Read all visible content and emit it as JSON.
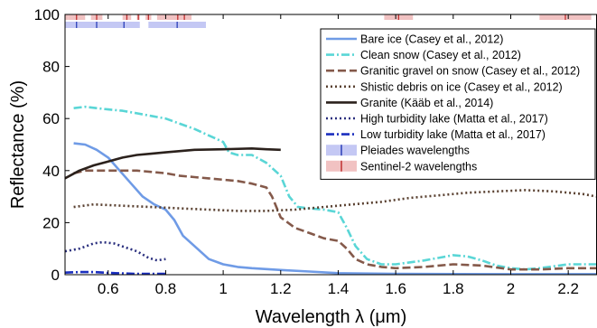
{
  "chart_data": {
    "type": "line",
    "xlabel": "Wavelength λ (μm)",
    "ylabel": "Reflectance (%)",
    "xlim": [
      0.45,
      2.3
    ],
    "ylim": [
      0,
      100
    ],
    "xticks": [
      "0.6",
      "0.8",
      "1",
      "1.2",
      "1.4",
      "1.6",
      "1.8",
      "2",
      "2.2"
    ],
    "xtick_values": [
      0.6,
      0.8,
      1.0,
      1.2,
      1.4,
      1.6,
      1.8,
      2.0,
      2.2
    ],
    "yticks": [
      "0",
      "20",
      "40",
      "60",
      "80",
      "100"
    ],
    "ytick_values": [
      0,
      20,
      40,
      60,
      80,
      100
    ],
    "grid": false,
    "legend_position": "right",
    "series": [
      {
        "name": "Bare ice (Casey et al., 2012)",
        "color": "#6f9be6",
        "dash": "solid",
        "points": [
          [
            0.48,
            50.5
          ],
          [
            0.52,
            50
          ],
          [
            0.56,
            48
          ],
          [
            0.6,
            45
          ],
          [
            0.64,
            40
          ],
          [
            0.68,
            35
          ],
          [
            0.72,
            30
          ],
          [
            0.76,
            27
          ],
          [
            0.8,
            25
          ],
          [
            0.83,
            21
          ],
          [
            0.86,
            15
          ],
          [
            0.9,
            11
          ],
          [
            0.95,
            6
          ],
          [
            1.0,
            4
          ],
          [
            1.05,
            3
          ],
          [
            1.1,
            2.5
          ],
          [
            1.2,
            1.8
          ],
          [
            1.3,
            1.2
          ],
          [
            1.4,
            0.6
          ],
          [
            1.6,
            0.3
          ],
          [
            2.0,
            0.2
          ],
          [
            2.3,
            0.2
          ]
        ]
      },
      {
        "name": "Clean snow (Casey et al., 2012)",
        "color": "#5ad6d6",
        "dash": "dashdot",
        "points": [
          [
            0.48,
            64
          ],
          [
            0.52,
            64.5
          ],
          [
            0.56,
            64
          ],
          [
            0.6,
            63.5
          ],
          [
            0.65,
            63
          ],
          [
            0.7,
            62
          ],
          [
            0.75,
            61
          ],
          [
            0.8,
            60
          ],
          [
            0.85,
            58
          ],
          [
            0.9,
            56
          ],
          [
            0.95,
            53.5
          ],
          [
            1.0,
            51
          ],
          [
            1.02,
            47
          ],
          [
            1.05,
            46
          ],
          [
            1.1,
            46
          ],
          [
            1.15,
            43
          ],
          [
            1.2,
            38
          ],
          [
            1.23,
            30
          ],
          [
            1.26,
            26
          ],
          [
            1.3,
            25.5
          ],
          [
            1.35,
            25
          ],
          [
            1.4,
            24
          ],
          [
            1.43,
            18
          ],
          [
            1.46,
            11
          ],
          [
            1.5,
            6
          ],
          [
            1.55,
            4
          ],
          [
            1.6,
            4
          ],
          [
            1.7,
            5.5
          ],
          [
            1.8,
            7.5
          ],
          [
            1.85,
            7
          ],
          [
            1.9,
            5.5
          ],
          [
            1.95,
            3.5
          ],
          [
            2.0,
            2.5
          ],
          [
            2.05,
            2
          ],
          [
            2.1,
            2.5
          ],
          [
            2.2,
            4
          ],
          [
            2.3,
            4
          ]
        ]
      },
      {
        "name": "Granitic gravel on snow (Casey et al., 2012)",
        "color": "#84594a",
        "dash": "dash",
        "points": [
          [
            0.48,
            39
          ],
          [
            0.52,
            40
          ],
          [
            0.6,
            40
          ],
          [
            0.7,
            40
          ],
          [
            0.8,
            39
          ],
          [
            0.85,
            38
          ],
          [
            0.9,
            37.5
          ],
          [
            0.95,
            37
          ],
          [
            1.0,
            36.5
          ],
          [
            1.05,
            36
          ],
          [
            1.1,
            35
          ],
          [
            1.15,
            33.5
          ],
          [
            1.17,
            30
          ],
          [
            1.2,
            22
          ],
          [
            1.25,
            18
          ],
          [
            1.3,
            16
          ],
          [
            1.35,
            14
          ],
          [
            1.4,
            13
          ],
          [
            1.43,
            10
          ],
          [
            1.46,
            6
          ],
          [
            1.5,
            4
          ],
          [
            1.55,
            3
          ],
          [
            1.6,
            2.5
          ],
          [
            1.7,
            3
          ],
          [
            1.8,
            4
          ],
          [
            1.9,
            3.5
          ],
          [
            2.0,
            2
          ],
          [
            2.1,
            2
          ],
          [
            2.2,
            2.5
          ],
          [
            2.3,
            2.5
          ]
        ]
      },
      {
        "name": "Shistic debris on ice (Casey et al., 2012)",
        "color": "#5a4131",
        "dash": "dot",
        "points": [
          [
            0.48,
            26
          ],
          [
            0.55,
            27
          ],
          [
            0.65,
            26.5
          ],
          [
            0.75,
            26
          ],
          [
            0.85,
            25.5
          ],
          [
            0.95,
            25
          ],
          [
            1.05,
            24.5
          ],
          [
            1.15,
            24.5
          ],
          [
            1.25,
            25
          ],
          [
            1.35,
            26
          ],
          [
            1.45,
            27
          ],
          [
            1.55,
            28
          ],
          [
            1.65,
            29.5
          ],
          [
            1.75,
            30.5
          ],
          [
            1.85,
            31.5
          ],
          [
            1.95,
            32
          ],
          [
            2.05,
            32.5
          ],
          [
            2.15,
            32
          ],
          [
            2.25,
            31
          ],
          [
            2.3,
            30
          ]
        ]
      },
      {
        "name": "Granite (Kääb et al., 2014)",
        "color": "#2b211c",
        "dash": "solid",
        "points": [
          [
            0.45,
            37
          ],
          [
            0.5,
            40
          ],
          [
            0.55,
            42
          ],
          [
            0.6,
            43.5
          ],
          [
            0.65,
            45
          ],
          [
            0.7,
            46
          ],
          [
            0.75,
            46.5
          ],
          [
            0.8,
            47
          ],
          [
            0.85,
            47.5
          ],
          [
            0.9,
            48
          ],
          [
            1.0,
            48.2
          ],
          [
            1.1,
            48.5
          ],
          [
            1.15,
            48.2
          ],
          [
            1.2,
            48
          ]
        ]
      },
      {
        "name": "High turbidity lake (Matta et al., 2017)",
        "color": "#2a2f7e",
        "dash": "dot",
        "points": [
          [
            0.45,
            9
          ],
          [
            0.5,
            10
          ],
          [
            0.55,
            12
          ],
          [
            0.58,
            12.5
          ],
          [
            0.62,
            12
          ],
          [
            0.66,
            10.5
          ],
          [
            0.7,
            9
          ],
          [
            0.74,
            6.5
          ],
          [
            0.77,
            5.5
          ],
          [
            0.8,
            6
          ]
        ]
      },
      {
        "name": "Low turbidity lake (Matta et al., 2017)",
        "color": "#1b2fbf",
        "dash": "dashdot",
        "points": [
          [
            0.45,
            0.8
          ],
          [
            0.5,
            1
          ],
          [
            0.55,
            1
          ],
          [
            0.6,
            0.7
          ],
          [
            0.7,
            0.3
          ],
          [
            0.8,
            0.3
          ]
        ]
      }
    ],
    "patch_legend": [
      {
        "name": "Pleiades wavelengths",
        "color": "#c4c8f4",
        "line": "#2b3fb8"
      },
      {
        "name": "Sentinel-2 wavelengths",
        "color": "#f1c2c2",
        "line": "#c03030"
      }
    ],
    "band_markers": {
      "sentinel2": {
        "fill": "#f1c2c2",
        "line": "#c03030",
        "bands": [
          [
            0.43,
            0.46,
            0.443
          ],
          [
            0.46,
            0.52,
            0.49
          ],
          [
            0.54,
            0.58,
            0.56
          ],
          [
            0.65,
            0.68,
            0.665
          ],
          [
            0.7,
            0.71,
            0.705
          ],
          [
            0.73,
            0.75,
            0.74
          ],
          [
            0.77,
            0.79,
            0.783
          ],
          [
            0.78,
            0.89,
            0.842
          ],
          [
            0.85,
            0.88,
            0.865
          ],
          [
            1.56,
            1.66,
            1.61
          ],
          [
            2.1,
            2.28,
            2.19
          ]
        ]
      },
      "pleiades": {
        "fill": "#c4c8f4",
        "line": "#2b3fb8",
        "bands": [
          [
            0.43,
            0.55,
            0.49
          ],
          [
            0.5,
            0.62,
            0.56
          ],
          [
            0.59,
            0.71,
            0.655
          ],
          [
            0.74,
            0.94,
            0.84
          ]
        ]
      }
    }
  }
}
